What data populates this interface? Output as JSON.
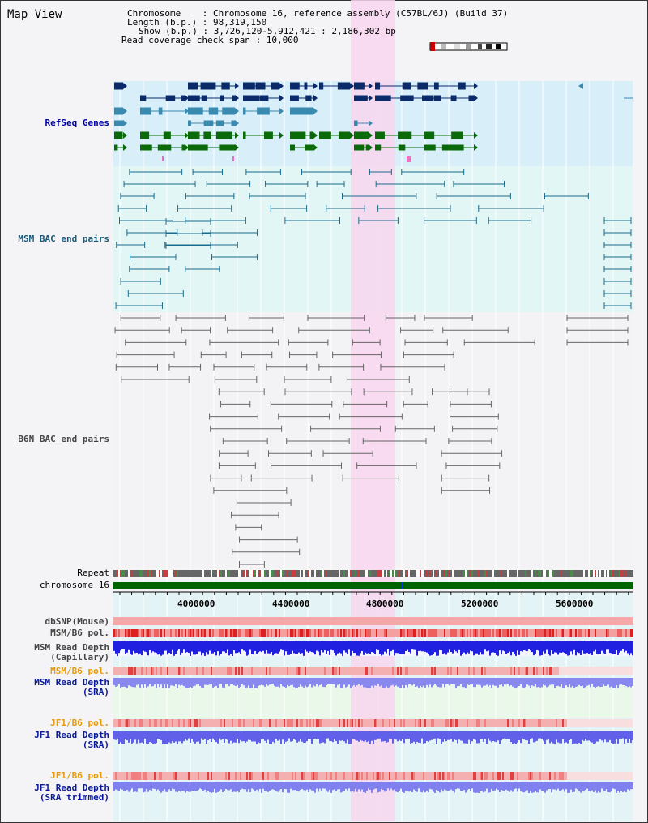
{
  "header": {
    "title": "Map View",
    "chromosome_line": "Chromosome    : Chromosome 16, reference assembly (C57BL/6J) (Build 37)",
    "length_line": "Length (b.p.) : 98,319,150",
    "show_line": "Show (b.p.) : 3,726,120-5,912,421 : 2,186,302 bp",
    "coverage_line": "Read coverage check span : 10,000"
  },
  "tracks": {
    "refseq": "RefSeq Genes",
    "msm_bac": "MSM BAC end pairs",
    "b6n_bac": "B6N BAC end pairs",
    "repeat": "Repeat",
    "chromosome": "chromosome 16",
    "dbsnp": "dbSNP(Mouse)",
    "msm_b6_pol_1": "MSM/B6 pol.",
    "msm_depth_cap_1": "MSM Read Depth",
    "msm_depth_cap_2": "(Capillary)",
    "msm_b6_pol_2": "MSM/B6 pol.",
    "msm_depth_sra_1": "MSM Read Depth",
    "msm_depth_sra_2": "(SRA)",
    "jf1_b6_pol_1": "JF1/B6 pol.",
    "jf1_depth_sra_1": "JF1 Read Depth",
    "jf1_depth_sra_2": "(SRA)",
    "jf1_b6_pol_2": "JF1/B6 pol.",
    "jf1_depth_trim_1": "JF1 Read Depth",
    "jf1_depth_trim_2": "(SRA trimmed)"
  },
  "axis": {
    "ticks": [
      "4000000",
      "4400000",
      "4800000",
      "5200000",
      "5600000"
    ]
  },
  "colors": {
    "refseq_bg": "#d8eef8",
    "msm_bg": "#e2f6f6",
    "b6n_bg": "#f3f3f6",
    "highlight": "#f8d6ee",
    "refseq_dark": "#0a2a6a",
    "refseq_mid": "#3a8ab0",
    "refseq_green": "#0a6a0a",
    "msm_pair": "#1a6a8a",
    "b6n_pair": "#666666",
    "chromosome_bar": "#006400",
    "snp_red": "#e04040",
    "depth_blue": "#2020e0",
    "depth_light": "#6060e8"
  }
}
